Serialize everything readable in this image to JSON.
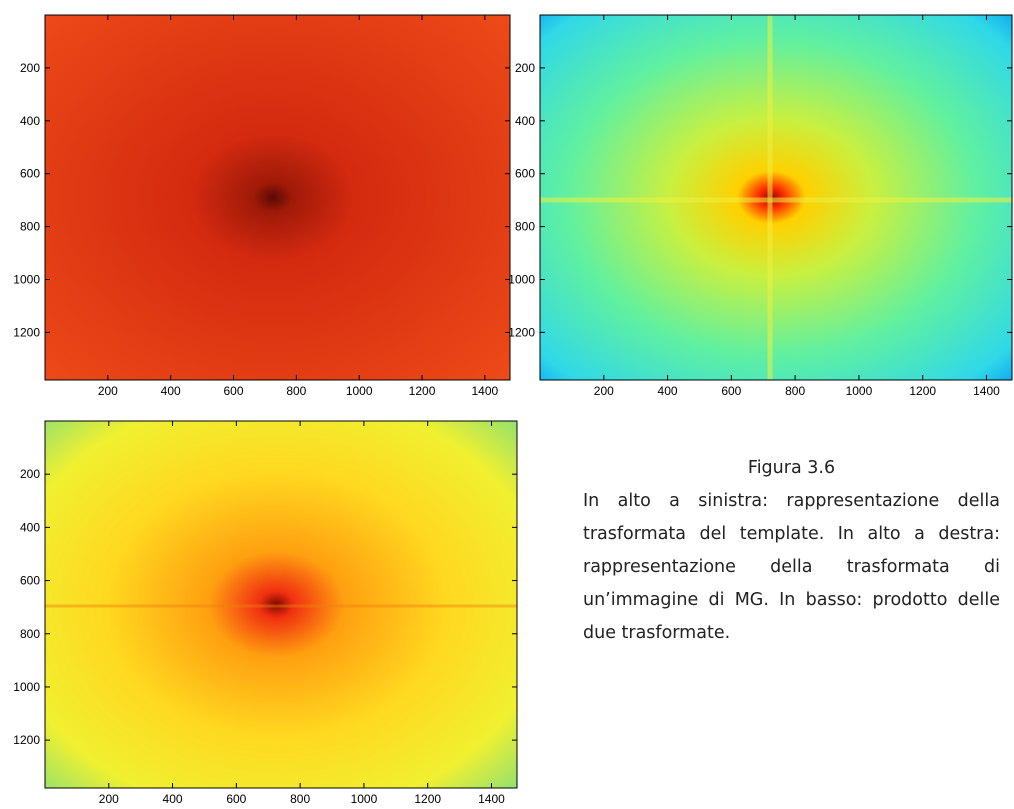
{
  "chart_data": [
    {
      "type": "image",
      "xlim": [
        0,
        1480
      ],
      "ylim": [
        0,
        1380
      ],
      "xticks": [
        200,
        400,
        600,
        800,
        1000,
        1200,
        1400
      ],
      "yticks": [
        200,
        400,
        600,
        800,
        1000,
        1200
      ]
    },
    {
      "type": "image",
      "xlim": [
        0,
        1480
      ],
      "ylim": [
        0,
        1380
      ],
      "xticks": [
        200,
        400,
        600,
        800,
        1000,
        1200,
        1400
      ],
      "yticks": [
        200,
        400,
        600,
        800,
        1000,
        1200
      ]
    },
    {
      "type": "image",
      "xlim": [
        0,
        1480
      ],
      "ylim": [
        0,
        1380
      ],
      "xticks": [
        200,
        400,
        600,
        800,
        1000,
        1200,
        1400
      ],
      "yticks": [
        200,
        400,
        600,
        800,
        1000,
        1200
      ]
    }
  ],
  "caption": {
    "title": "Figura 3.6",
    "text": "In alto a sinistra: rappresentazione della trasformata del template. In alto a destra: rappresentazione della trasformata di un’immagine di MG. In basso: prodotto delle due trasformate."
  }
}
